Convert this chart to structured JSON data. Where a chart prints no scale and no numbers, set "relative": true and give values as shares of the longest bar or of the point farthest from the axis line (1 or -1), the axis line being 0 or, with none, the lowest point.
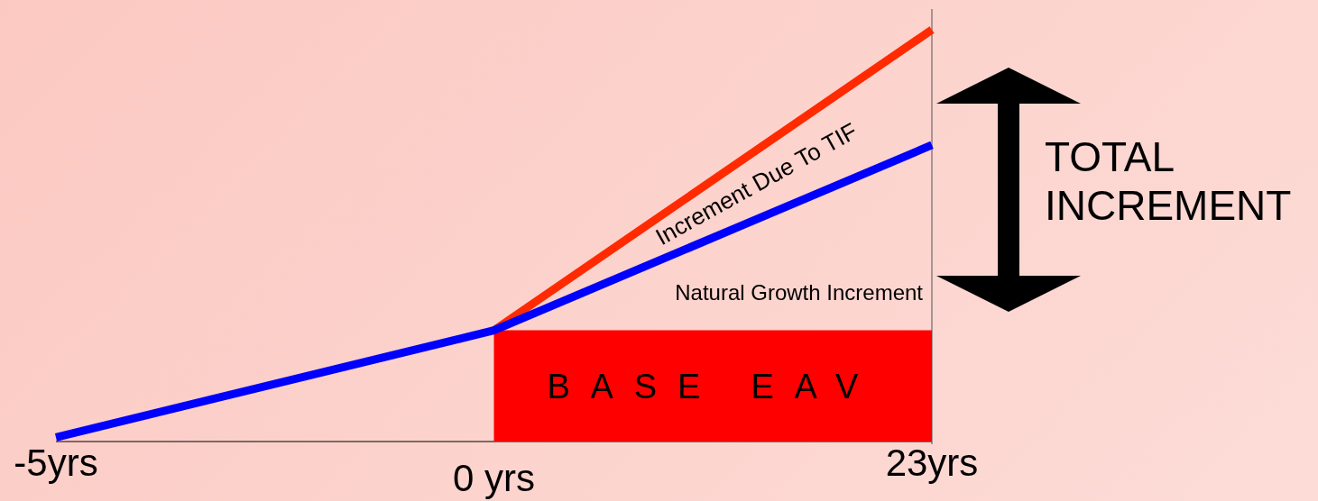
{
  "chart_data": {
    "type": "line",
    "relative": true,
    "categories": [
      "-5yrs",
      "0 yrs",
      "23yrs"
    ],
    "series": [
      {
        "type": "area",
        "name": "BASE EAV",
        "color": "#ff0000",
        "values": [
          null,
          0.27,
          0.27
        ]
      },
      {
        "color": "#ff2a00",
        "values": [
          null,
          0.27,
          1
        ]
      },
      {
        "color": "#0000ff",
        "values": [
          0.01,
          0.27,
          0.72
        ]
      }
    ],
    "annotations": [
      "Increment Due To TIF",
      "Natural Growth Increment",
      "TOTAL INCREMENT"
    ]
  }
}
